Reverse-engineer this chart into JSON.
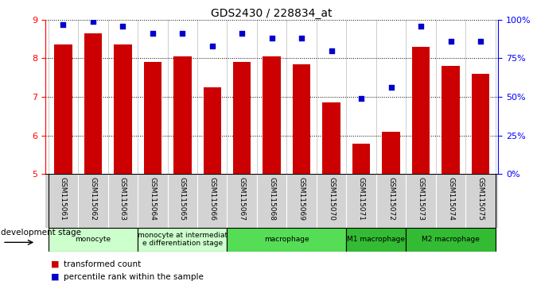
{
  "title": "GDS2430 / 228834_at",
  "samples": [
    "GSM115061",
    "GSM115062",
    "GSM115063",
    "GSM115064",
    "GSM115065",
    "GSM115066",
    "GSM115067",
    "GSM115068",
    "GSM115069",
    "GSM115070",
    "GSM115071",
    "GSM115072",
    "GSM115073",
    "GSM115074",
    "GSM115075"
  ],
  "bar_values": [
    8.35,
    8.65,
    8.35,
    7.9,
    8.05,
    7.25,
    7.9,
    8.05,
    7.85,
    6.85,
    5.8,
    6.1,
    8.3,
    7.8,
    7.6
  ],
  "dot_values": [
    97,
    99,
    96,
    91,
    91,
    83,
    91,
    88,
    88,
    80,
    49,
    56,
    96,
    86,
    86
  ],
  "bar_color": "#cc0000",
  "dot_color": "#0000cc",
  "ylim_left": [
    5,
    9
  ],
  "ylim_right": [
    0,
    100
  ],
  "yticks_left": [
    5,
    6,
    7,
    8,
    9
  ],
  "yticks_right": [
    0,
    25,
    50,
    75,
    100
  ],
  "ytick_labels_right": [
    "0%",
    "25%",
    "50%",
    "75%",
    "100%"
  ],
  "group_defs": [
    {
      "start": 0,
      "end": 3,
      "label": "monocyte",
      "color": "#ccffcc"
    },
    {
      "start": 3,
      "end": 6,
      "label": "monocyte at intermediat\ne differentiation stage",
      "color": "#ccffcc"
    },
    {
      "start": 6,
      "end": 10,
      "label": "macrophage",
      "color": "#55dd55"
    },
    {
      "start": 10,
      "end": 12,
      "label": "M1 macrophage",
      "color": "#33bb33"
    },
    {
      "start": 12,
      "end": 15,
      "label": "M2 macrophage",
      "color": "#33bb33"
    }
  ],
  "dev_stage_label": "development stage",
  "legend_bar": "transformed count",
  "legend_dot": "percentile rank within the sample"
}
